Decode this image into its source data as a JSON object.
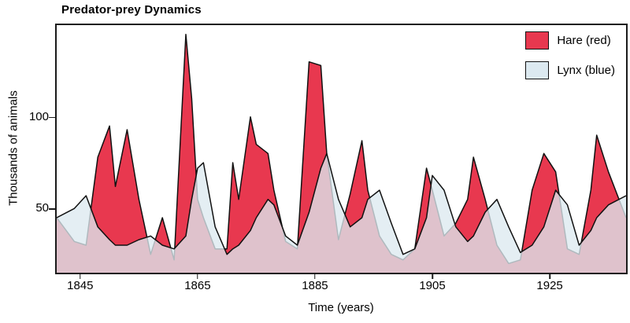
{
  "figure": {
    "title": "Predator-prey Dynamics",
    "x_axis_label": "Time (years)",
    "y_axis_label": "Thousands of animals"
  },
  "legend": {
    "items": [
      {
        "label": "Hare (red)",
        "color": "#e8384f"
      },
      {
        "label": "Lynx (blue)",
        "color": "#dce9f0"
      }
    ]
  },
  "chart_data": {
    "type": "area",
    "title": "Predator-prey Dynamics",
    "xlabel": "Time (years)",
    "ylabel": "Thousands of animals",
    "xlim": [
      1841,
      1938
    ],
    "ylim": [
      15,
      150
    ],
    "x_ticks": [
      1845,
      1865,
      1885,
      1905,
      1925
    ],
    "y_ticks": [
      50,
      100
    ],
    "grid": false,
    "legend_position": "top-right",
    "x": [
      1841,
      1844,
      1846,
      1848,
      1850,
      1851,
      1853,
      1855,
      1857,
      1859,
      1861,
      1863,
      1864,
      1865,
      1866,
      1868,
      1870,
      1871,
      1872,
      1874,
      1875,
      1877,
      1878,
      1880,
      1882,
      1884,
      1886,
      1887,
      1889,
      1891,
      1893,
      1894,
      1896,
      1898,
      1900,
      1902,
      1904,
      1905,
      1907,
      1909,
      1911,
      1912,
      1914,
      1916,
      1918,
      1920,
      1922,
      1924,
      1926,
      1928,
      1930,
      1932,
      1933,
      1935,
      1938
    ],
    "series": [
      {
        "name": "Hare (red)",
        "color": "#e8384f",
        "stroke": "#111111",
        "opacity": 1,
        "values": [
          45,
          32,
          30,
          78,
          95,
          62,
          93,
          55,
          25,
          45,
          22,
          145,
          110,
          55,
          45,
          28,
          28,
          75,
          55,
          100,
          85,
          80,
          60,
          32,
          28,
          130,
          128,
          80,
          33,
          58,
          87,
          60,
          35,
          25,
          22,
          28,
          72,
          60,
          35,
          42,
          55,
          78,
          55,
          30,
          20,
          22,
          60,
          80,
          70,
          28,
          25,
          60,
          90,
          70,
          45
        ]
      },
      {
        "name": "Lynx (blue)",
        "color": "#dce9f0",
        "stroke": "#111111",
        "opacity": 0.78,
        "values": [
          45,
          50,
          57,
          40,
          33,
          30,
          30,
          33,
          35,
          30,
          28,
          35,
          55,
          72,
          75,
          40,
          25,
          28,
          30,
          38,
          45,
          55,
          52,
          35,
          30,
          48,
          72,
          80,
          55,
          40,
          45,
          55,
          60,
          42,
          25,
          28,
          45,
          68,
          60,
          40,
          32,
          35,
          48,
          55,
          40,
          26,
          30,
          40,
          60,
          52,
          30,
          38,
          45,
          52,
          57
        ]
      }
    ]
  }
}
